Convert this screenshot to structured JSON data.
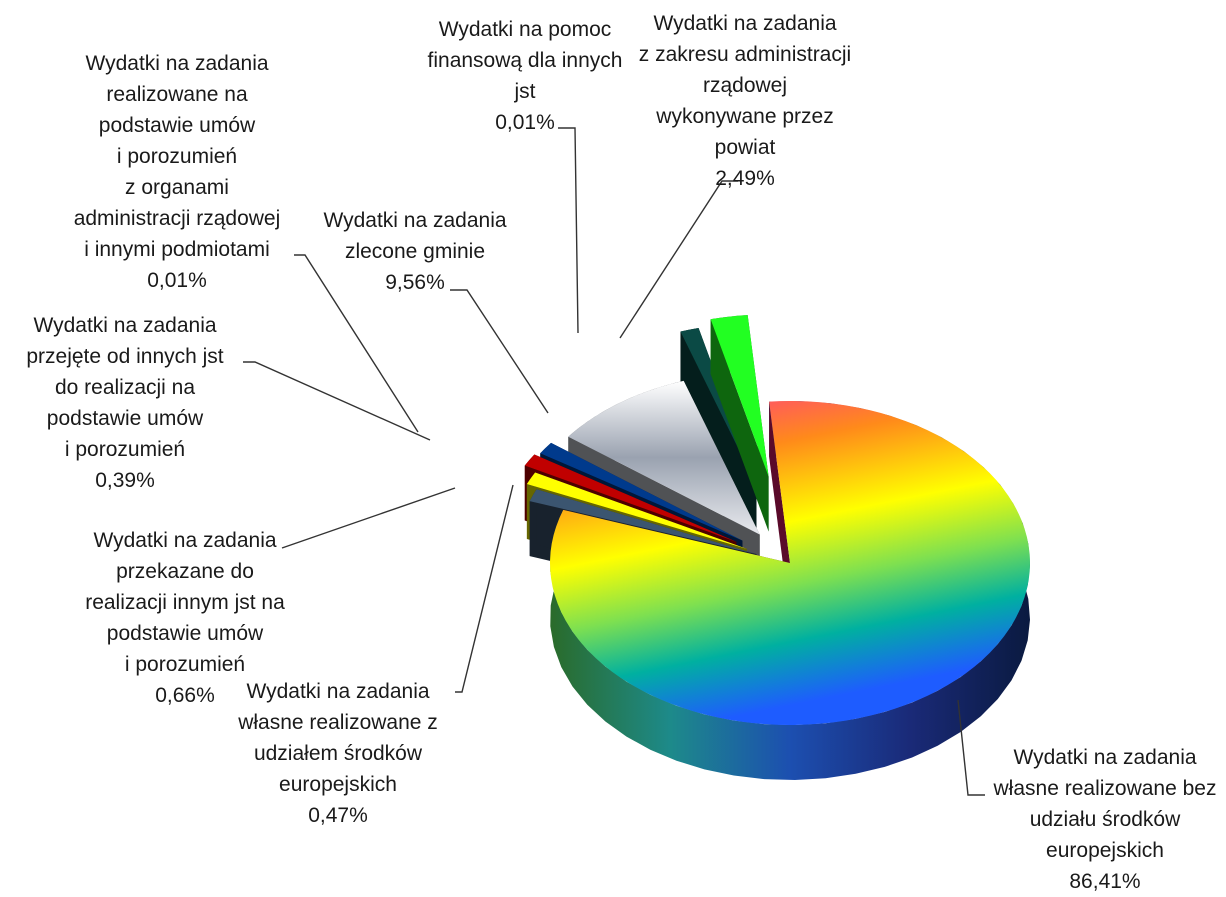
{
  "chart_data": {
    "type": "pie",
    "style": "3d-exploded",
    "slices": [
      {
        "id": "wlasne_bez_ue",
        "lines": [
          "Wydatki na zadania",
          "własne realizowane bez",
          "udziału środków",
          "europejskich"
        ],
        "pct_label": "86,41%",
        "value": 86.41,
        "color": "#7bd834"
      },
      {
        "id": "wlasne_z_ue",
        "lines": [
          "Wydatki na zadania",
          "własne realizowane z",
          "udziałem środków",
          "europejskich"
        ],
        "pct_label": "0,47%",
        "value": 0.47,
        "color": "#3b5570"
      },
      {
        "id": "przekazane",
        "lines": [
          "Wydatki na zadania",
          "przekazane do",
          "realizacji innym jst na",
          "podstawie umów",
          "i porozumień"
        ],
        "pct_label": "0,66%",
        "value": 0.66,
        "color": "#ffff00"
      },
      {
        "id": "przejete",
        "lines": [
          "Wydatki na zadania",
          "przejęte od innych jst",
          "do realizacji na",
          "podstawie umów",
          "i porozumień"
        ],
        "pct_label": "0,39%",
        "value": 0.39,
        "color": "#c00000"
      },
      {
        "id": "umowy_adm_rzad",
        "lines": [
          "Wydatki na zadania",
          "realizowane na",
          "podstawie umów",
          "i porozumień",
          "z organami",
          "administracji rządowej",
          "i innymi podmiotami"
        ],
        "pct_label": "0,01%",
        "value": 0.01,
        "color": "#003a8c"
      },
      {
        "id": "zlecone_gminie",
        "lines": [
          "Wydatki na zadania",
          "zlecone gminie"
        ],
        "pct_label": "9,56%",
        "value": 9.56,
        "color": "#c8ccd4"
      },
      {
        "id": "pomoc_finansowa",
        "lines": [
          "Wydatki na pomoc",
          "finansową dla innych",
          "jst"
        ],
        "pct_label": "0,01%",
        "value": 0.01,
        "color": "#0b4a45"
      },
      {
        "id": "adm_rzadowa_powiat",
        "lines": [
          "Wydatki na zadania",
          "z zakresu administracji",
          "rządowej",
          "wykonywane przez",
          "powiat"
        ],
        "pct_label": "2,49%",
        "value": 2.49,
        "color": "#22ff22"
      }
    ]
  }
}
